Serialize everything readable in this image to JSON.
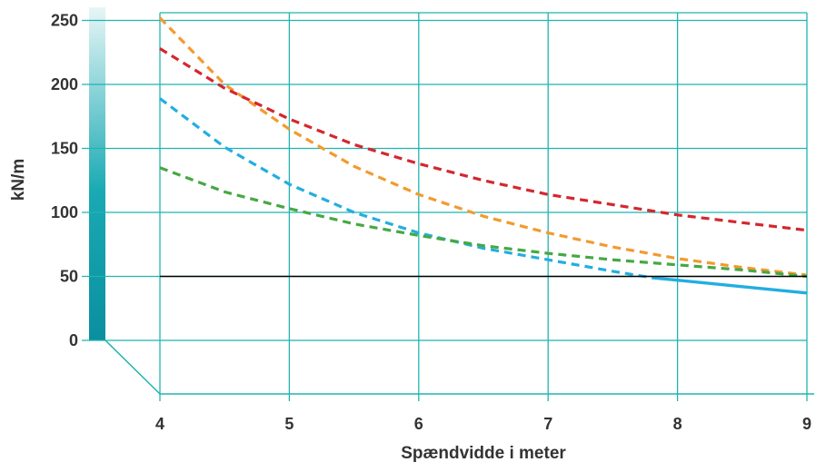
{
  "chart_data": {
    "type": "line",
    "xlabel": "Spændvidde i meter",
    "ylabel": "kN/m",
    "xlim": [
      4,
      9
    ],
    "ylim": [
      0,
      260
    ],
    "x_ticks": [
      "4",
      "5",
      "6",
      "7",
      "8",
      "9"
    ],
    "y_ticks": [
      "0",
      "50",
      "100",
      "150",
      "200",
      "250"
    ],
    "grid": true,
    "colors": {
      "grid": "#1fb5b0",
      "baseline": "#000000",
      "axis_bar_top": "#e8f6f6",
      "axis_bar_bottom": "#0a8fa0"
    },
    "series": [
      {
        "color": "#f39a2e",
        "style": "dashed",
        "x": [
          4,
          4.5,
          5,
          5.5,
          6,
          6.5,
          7,
          7.5,
          8,
          8.5,
          9
        ],
        "y": [
          252,
          200,
          165,
          136,
          114,
          97,
          84,
          73,
          64,
          57,
          51
        ]
      },
      {
        "color": "#d4272e",
        "style": "dashed",
        "x": [
          4,
          4.5,
          5,
          5.5,
          6,
          6.5,
          7,
          7.5,
          8,
          8.5,
          9
        ],
        "y": [
          228,
          197,
          173,
          153,
          138,
          125,
          114,
          106,
          98,
          92,
          86
        ]
      },
      {
        "color": "#22aee0",
        "style": "dashed-then-solid",
        "switch_x": 7.8,
        "x": [
          4,
          4.5,
          5,
          5.5,
          6,
          6.5,
          7,
          7.5,
          7.8,
          8,
          8.5,
          9
        ],
        "y": [
          189,
          151,
          122,
          100,
          84,
          72,
          63,
          54,
          49,
          47,
          42,
          37
        ]
      },
      {
        "color": "#46a843",
        "style": "dashed",
        "x": [
          4,
          4.5,
          5,
          5.5,
          6,
          6.5,
          7,
          7.5,
          8,
          8.5,
          9
        ],
        "y": [
          135,
          116,
          103,
          91,
          82,
          74,
          68,
          63,
          59,
          55,
          50
        ]
      }
    ],
    "reference_line": {
      "y": 50,
      "color": "#000000"
    }
  }
}
